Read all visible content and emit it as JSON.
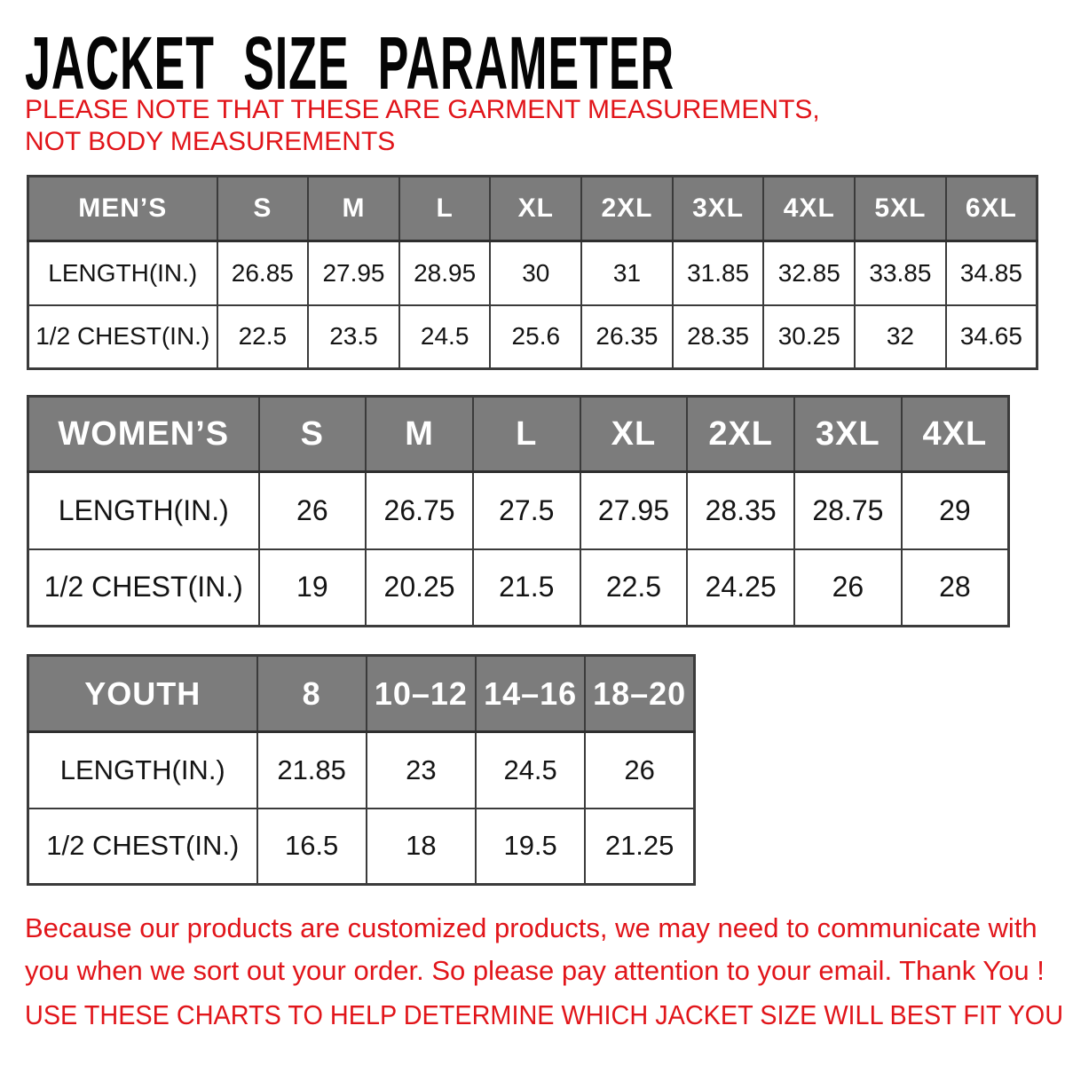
{
  "title": "JACKET SIZE PARAMETER",
  "note": "PLEASE NOTE THAT THESE ARE GARMENT MEASUREMENTS, NOT BODY MEASUREMENTS",
  "tables": {
    "mens": {
      "header": [
        "MEN’S",
        "S",
        "M",
        "L",
        "XL",
        "2XL",
        "3XL",
        "4XL",
        "5XL",
        "6XL"
      ],
      "rows": [
        [
          "LENGTH(IN.)",
          "26.85",
          "27.95",
          "28.95",
          "30",
          "31",
          "31.85",
          "32.85",
          "33.85",
          "34.85"
        ],
        [
          "1/2 CHEST(IN.)",
          "22.5",
          "23.5",
          "24.5",
          "25.6",
          "26.35",
          "28.35",
          "30.25",
          "32",
          "34.65"
        ]
      ]
    },
    "womens": {
      "header": [
        "WOMEN’S",
        "S",
        "M",
        "L",
        "XL",
        "2XL",
        "3XL",
        "4XL"
      ],
      "rows": [
        [
          "LENGTH(IN.)",
          "26",
          "26.75",
          "27.5",
          "27.95",
          "28.35",
          "28.75",
          "29"
        ],
        [
          "1/2 CHEST(IN.)",
          "19",
          "20.25",
          "21.5",
          "22.5",
          "24.25",
          "26",
          "28"
        ]
      ]
    },
    "youth": {
      "header": [
        "YOUTH",
        "8",
        "10–12",
        "14–16",
        "18–20"
      ],
      "rows": [
        [
          "LENGTH(IN.)",
          "21.85",
          "23",
          "24.5",
          "26"
        ],
        [
          "1/2 CHEST(IN.)",
          "16.5",
          "18",
          "19.5",
          "21.25"
        ]
      ]
    }
  },
  "footer": {
    "paragraph": "Because our products are customized products, we may need to communicate with you when we sort out your order. So please pay attention to your email. Thank You !",
    "advice": "USE THESE CHARTS TO HELP DETERMINE WHICH JACKET SIZE WILL BEST FIT YOU."
  },
  "colors": {
    "accent_red": "#e1151a",
    "header_gray": "#7c7c7c",
    "border_dark": "#3b3b3b"
  }
}
